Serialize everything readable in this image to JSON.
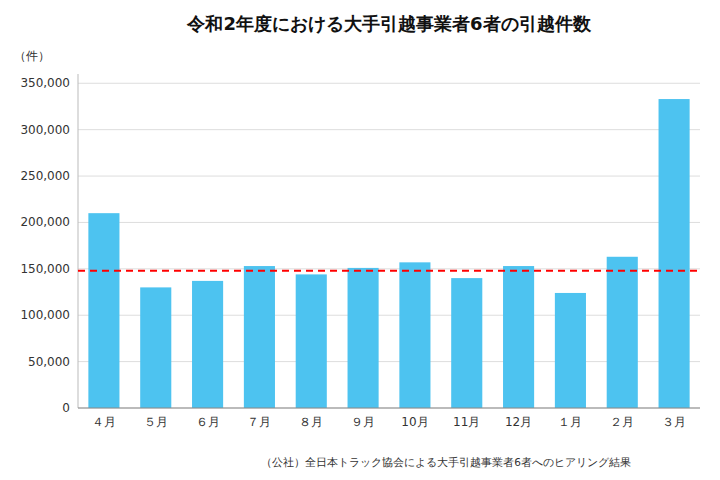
{
  "chart_data": {
    "type": "bar",
    "title": "令和2年度における大手引越事業者6者の引越件数",
    "ylabel": "（件）",
    "note": "（公社）全日本トラック協会による大手引越事業者6者へのヒアリング結果",
    "categories": [
      "４月",
      "５月",
      "６月",
      "７月",
      "８月",
      "９月",
      "10月",
      "11月",
      "12月",
      "１月",
      "２月",
      "３月"
    ],
    "values": [
      210000,
      130000,
      137000,
      153000,
      144000,
      151000,
      157000,
      140000,
      153000,
      124000,
      163000,
      333000
    ],
    "color": "#4DC3F0",
    "reference_line": {
      "value": 148000,
      "color": "#FF0000",
      "line_style": "dashed"
    },
    "ylim": [
      0,
      360000
    ],
    "yticks": [
      0,
      {
        "value": 50000,
        "label": "50,000"
      },
      {
        "value": 100000,
        "label": "100,000"
      },
      {
        "value": 150000,
        "label": "150,000"
      },
      {
        "value": 200000,
        "label": "200,000"
      },
      {
        "value": 250000,
        "label": "250,000"
      },
      {
        "value": 300000,
        "label": "300,000"
      },
      {
        "value": 350000,
        "label": "350,000"
      }
    ],
    "grid": true
  }
}
